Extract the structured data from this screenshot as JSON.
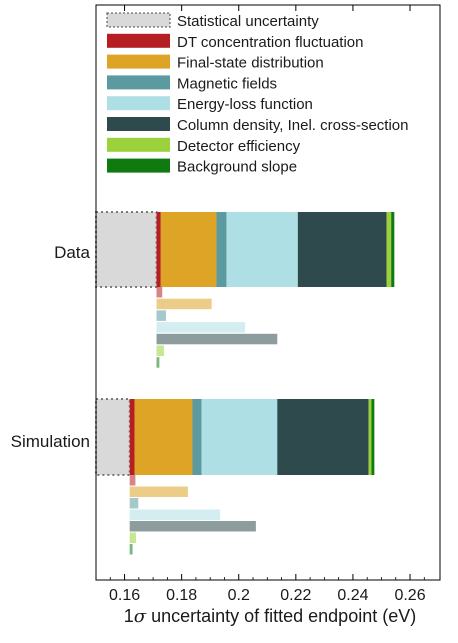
{
  "chart_data": {
    "type": "bar",
    "orientation": "horizontal-stacked",
    "xlabel_prefix": "1",
    "xlabel_sigma": "σ",
    "xlabel_rest": " uncertainty of fitted endpoint (eV)",
    "xlim": [
      0.15,
      0.2705
    ],
    "x_ticks": [
      0.16,
      0.18,
      0.2,
      0.22,
      0.24,
      0.26
    ],
    "x_tick_labels": [
      "0.16",
      "0.18",
      "0.2",
      "0.22",
      "0.24",
      "0.26"
    ],
    "grid": false,
    "legend_position": "top",
    "legend": [
      {
        "key": "stat",
        "label": "Statistical uncertainty",
        "color": "#d9d9d9",
        "dotted": true
      },
      {
        "key": "dt",
        "label": "DT concentration fluctuation",
        "color": "#b51f24"
      },
      {
        "key": "fsd",
        "label": "Final-state distribution",
        "color": "#dda425"
      },
      {
        "key": "mag",
        "label": "Magnetic fields",
        "color": "#5b9ba0"
      },
      {
        "key": "eloss",
        "label": "Energy-loss function",
        "color": "#aedfe5"
      },
      {
        "key": "column",
        "label": "Column density, Inel. cross-section",
        "color": "#2f4a4c"
      },
      {
        "key": "det",
        "label": "Detector efficiency",
        "color": "#9bd13a"
      },
      {
        "key": "bkg",
        "label": "Background slope",
        "color": "#0f7a0f"
      }
    ],
    "groups": [
      {
        "name": "Data",
        "stat": 0.1712,
        "stack": [
          {
            "key": "dt",
            "end": 0.1727
          },
          {
            "key": "fsd",
            "end": 0.1922
          },
          {
            "key": "mag",
            "end": 0.1957
          },
          {
            "key": "eloss",
            "end": 0.2207
          },
          {
            "key": "column",
            "end": 0.2518
          },
          {
            "key": "det",
            "end": 0.2534
          },
          {
            "key": "bkg",
            "end": 0.2545
          }
        ],
        "individual": [
          {
            "key": "dt",
            "value": 0.1732
          },
          {
            "key": "fsd",
            "value": 0.1905
          },
          {
            "key": "mag",
            "value": 0.1745
          },
          {
            "key": "eloss",
            "value": 0.2022
          },
          {
            "key": "column",
            "value": 0.2135
          },
          {
            "key": "det",
            "value": 0.1738
          },
          {
            "key": "bkg",
            "value": 0.1722
          }
        ]
      },
      {
        "name": "Simulation",
        "stat": 0.1618,
        "stack": [
          {
            "key": "dt",
            "end": 0.1635
          },
          {
            "key": "fsd",
            "end": 0.1838
          },
          {
            "key": "mag",
            "end": 0.187
          },
          {
            "key": "eloss",
            "end": 0.2135
          },
          {
            "key": "column",
            "end": 0.2455
          },
          {
            "key": "det",
            "end": 0.2465
          },
          {
            "key": "bkg",
            "end": 0.2475
          }
        ],
        "individual": [
          {
            "key": "dt",
            "value": 0.1638
          },
          {
            "key": "fsd",
            "value": 0.1822
          },
          {
            "key": "mag",
            "value": 0.1648
          },
          {
            "key": "eloss",
            "value": 0.1935
          },
          {
            "key": "column",
            "value": 0.206
          },
          {
            "key": "det",
            "value": 0.164
          },
          {
            "key": "bkg",
            "value": 0.1628
          }
        ]
      }
    ]
  }
}
